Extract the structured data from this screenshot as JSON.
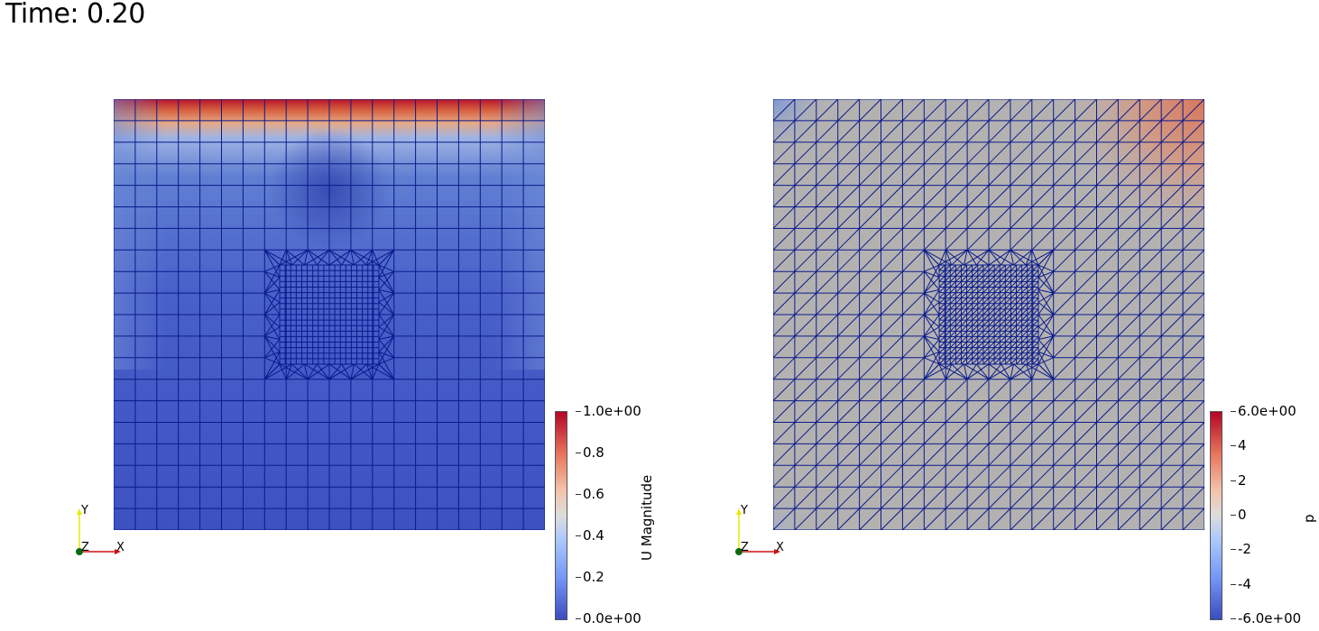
{
  "time_label": "Time: 0.20",
  "left_panel": {
    "colorbar": {
      "title": "U Magnitude",
      "ticks": [
        "1.0e+00",
        "0.8",
        "0.6",
        "0.4",
        "0.2",
        "0.0e+00"
      ],
      "range": [
        0,
        1
      ]
    },
    "axes": {
      "x": "X",
      "y": "Y",
      "z": "Z"
    }
  },
  "right_panel": {
    "colorbar": {
      "title": "p",
      "ticks": [
        "6.0e+00",
        "4",
        "2",
        "0",
        "-2",
        "-4",
        "-6.0e+00"
      ],
      "range": [
        -6,
        6
      ]
    },
    "axes": {
      "x": "X",
      "y": "Y",
      "z": "Z"
    }
  },
  "colors": {
    "mesh_edge": "#0a1a8c",
    "colormap_high": "#b40426",
    "colormap_mid": "#dddddd",
    "colormap_low": "#3b4cc0"
  }
}
